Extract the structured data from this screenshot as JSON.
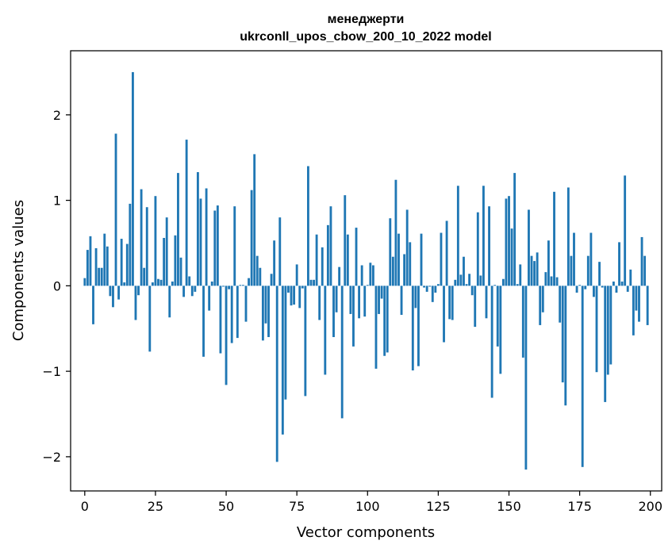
{
  "chart_data": {
    "type": "bar",
    "title_line1": "менеджерти",
    "title_line2": "ukrconll_upos_cbow_200_10_2022 model",
    "xlabel": "Vector components",
    "ylabel": "Components values",
    "xlim": [
      -5,
      204
    ],
    "ylim": [
      -2.4,
      2.75
    ],
    "x_ticks": [
      0,
      25,
      50,
      75,
      100,
      125,
      150,
      175,
      200
    ],
    "x_tick_labels": [
      "0",
      "25",
      "50",
      "75",
      "100",
      "125",
      "150",
      "175",
      "200"
    ],
    "y_ticks": [
      -2,
      -1,
      0,
      1,
      2
    ],
    "y_tick_labels": [
      "−2",
      "−1",
      "0",
      "1",
      "2"
    ],
    "bar_color": "#1f77b4",
    "values": [
      0.09,
      0.42,
      0.58,
      -0.45,
      0.44,
      0.21,
      0.21,
      0.61,
      0.46,
      -0.12,
      -0.25,
      1.78,
      -0.16,
      0.55,
      0.04,
      0.49,
      0.96,
      2.5,
      -0.4,
      -0.11,
      1.13,
      0.21,
      0.92,
      -0.77,
      0.04,
      1.05,
      0.08,
      0.07,
      0.56,
      0.8,
      -0.37,
      0.05,
      0.59,
      1.32,
      0.33,
      -0.13,
      1.71,
      0.11,
      -0.12,
      -0.07,
      1.33,
      1.02,
      -0.83,
      1.14,
      -0.29,
      0.05,
      0.88,
      0.94,
      -0.79,
      -0.01,
      -1.16,
      -0.04,
      -0.67,
      0.93,
      -0.61,
      0.01,
      0.01,
      -0.42,
      0.09,
      1.12,
      1.54,
      0.35,
      0.21,
      -0.64,
      -0.44,
      -0.6,
      0.14,
      0.53,
      -2.06,
      0.8,
      -1.74,
      -1.33,
      -0.08,
      -0.23,
      -0.22,
      0.25,
      -0.26,
      -0.03,
      -1.29,
      1.4,
      0.07,
      0.07,
      0.6,
      -0.4,
      0.45,
      -1.04,
      0.71,
      0.93,
      -0.6,
      -0.31,
      0.22,
      -1.55,
      1.06,
      0.6,
      -0.33,
      -0.71,
      0.68,
      -0.38,
      0.24,
      -0.36,
      0.01,
      0.27,
      0.24,
      -0.97,
      -0.33,
      -0.15,
      -0.82,
      -0.78,
      0.79,
      0.34,
      1.24,
      0.61,
      -0.34,
      0.37,
      0.89,
      0.51,
      -0.99,
      -0.26,
      -0.94,
      0.61,
      -0.02,
      -0.07,
      -0.01,
      -0.19,
      -0.08,
      0.02,
      0.62,
      -0.66,
      0.76,
      -0.39,
      -0.4,
      0.07,
      1.17,
      0.13,
      0.34,
      0.02,
      0.14,
      -0.11,
      -0.48,
      0.86,
      0.12,
      1.17,
      -0.38,
      0.93,
      -1.31,
      0.01,
      -0.71,
      -1.03,
      0.08,
      1.02,
      1.05,
      0.67,
      1.32,
      0.02,
      0.25,
      -0.84,
      -2.15,
      0.89,
      0.35,
      0.29,
      0.39,
      -0.46,
      -0.31,
      0.16,
      0.53,
      0.11,
      1.1,
      0.1,
      -0.43,
      -1.13,
      -1.4,
      1.15,
      0.35,
      0.62,
      -0.08,
      0.01,
      -2.12,
      -0.04,
      0.35,
      0.62,
      -0.13,
      -1.01,
      0.28,
      -0.02,
      -1.36,
      -1.04,
      -0.92,
      0.05,
      -0.08,
      0.51,
      0.05,
      1.29,
      -0.07,
      0.19,
      -0.58,
      -0.29,
      -0.42,
      0.57,
      0.35,
      -0.46
    ]
  }
}
